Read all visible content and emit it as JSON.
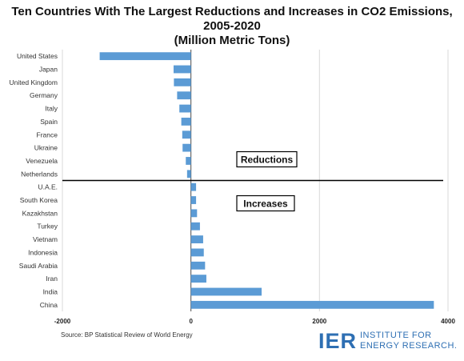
{
  "chart_data": {
    "type": "bar",
    "orientation": "horizontal",
    "title": "Ten Countries With The Largest Reductions and Increases in CO2 Emissions, 2005-2020",
    "subtitle": "(Million Metric Tons)",
    "categories": [
      "United States",
      "Japan",
      "United Kingdom",
      "Germany",
      "Italy",
      "Spain",
      "France",
      "Ukraine",
      "Venezuela",
      "Netherlands",
      "U.A.E.",
      "South Korea",
      "Kazakhstan",
      "Turkey",
      "Vietnam",
      "Indonesia",
      "Saudi Arabia",
      "Iran",
      "India",
      "China"
    ],
    "values": [
      -1420,
      -270,
      -265,
      -215,
      -180,
      -150,
      -135,
      -130,
      -80,
      -60,
      80,
      80,
      95,
      140,
      190,
      200,
      220,
      240,
      1100,
      3780
    ],
    "xlim": [
      -2000,
      4000
    ],
    "xticks": [
      "-2000",
      "0",
      "2000",
      "4000"
    ],
    "grid": true,
    "bar_color": "#5b9bd5",
    "annotations": [
      "Reductions",
      "Increases"
    ]
  },
  "footer": {
    "source": "Source: BP Statistical Review of World Energy",
    "logo_mark": "IER",
    "logo_line1": "INSTITUTE FOR",
    "logo_line2": "ENERGY RESEARCH."
  }
}
